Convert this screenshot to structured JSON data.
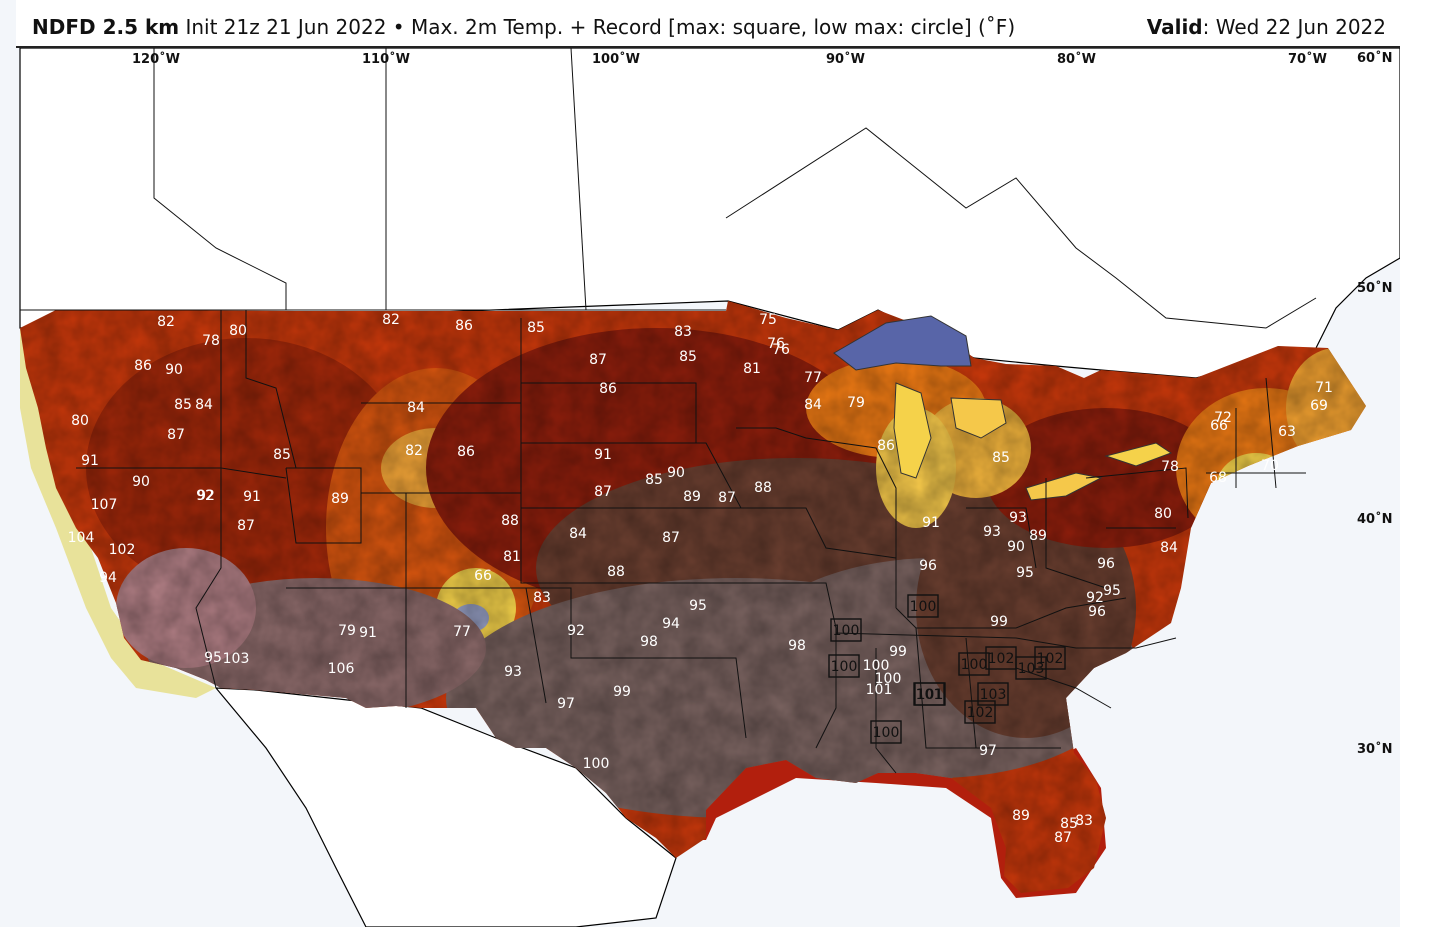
{
  "header": {
    "product": "NDFD 2.5 km",
    "init": "Init 21z 21 Jun 2022",
    "separator": "•",
    "variable": "Max. 2m Temp. + Record [max: square, low max: circle] (˚F)",
    "valid_label": "Valid",
    "valid_value": ": Wed 22 Jun 2022"
  },
  "map": {
    "longitude_labels": [
      "120˚W",
      "110˚W",
      "100˚W",
      "90˚W",
      "80˚W",
      "70˚W"
    ],
    "latitude_labels": [
      "60˚N",
      "50˚N",
      "40˚N",
      "30˚N"
    ],
    "colors": {
      "ocean": "#f3f6fa",
      "hot_gray": "#7a6360",
      "hot_brown": "#6b3f30",
      "dark_red": "#8e1e0c",
      "red_orange": "#c9380b",
      "orange": "#ee7a14",
      "yellow": "#f5d24a",
      "gulf_stream_red": "#b21f0d",
      "lake_superior": "#5865a8",
      "record_box_stroke": "#111111"
    },
    "temperature_labels": [
      {
        "text": "82"
      },
      {
        "text": "78"
      },
      {
        "text": "80"
      },
      {
        "text": "82"
      },
      {
        "text": "86"
      },
      {
        "text": "85"
      },
      {
        "text": "83"
      },
      {
        "text": "85"
      },
      {
        "text": "87"
      },
      {
        "text": "86"
      },
      {
        "text": "81"
      },
      {
        "text": "76"
      },
      {
        "text": "75"
      },
      {
        "text": "77"
      },
      {
        "text": "84"
      },
      {
        "text": "79"
      },
      {
        "text": "80"
      },
      {
        "text": "90"
      },
      {
        "text": "86"
      },
      {
        "text": "85"
      },
      {
        "text": "84"
      },
      {
        "text": "92"
      },
      {
        "text": "87"
      },
      {
        "text": "91"
      },
      {
        "text": "90"
      },
      {
        "text": "107"
      },
      {
        "text": "104"
      },
      {
        "text": "102"
      },
      {
        "text": "94"
      },
      {
        "text": "92"
      },
      {
        "text": "91"
      },
      {
        "text": "87"
      },
      {
        "text": "89"
      },
      {
        "text": "85"
      },
      {
        "text": "82"
      },
      {
        "text": "86"
      },
      {
        "text": "84"
      },
      {
        "text": "88"
      },
      {
        "text": "87"
      },
      {
        "text": "81"
      },
      {
        "text": "66"
      },
      {
        "text": "77"
      },
      {
        "text": "83"
      },
      {
        "text": "84"
      },
      {
        "text": "88"
      },
      {
        "text": "90"
      },
      {
        "text": "87"
      },
      {
        "text": "85"
      },
      {
        "text": "89"
      },
      {
        "text": "91"
      },
      {
        "text": "95"
      },
      {
        "text": "92"
      },
      {
        "text": "94"
      },
      {
        "text": "98"
      },
      {
        "text": "99"
      },
      {
        "text": "97"
      },
      {
        "text": "100"
      },
      {
        "text": "93"
      },
      {
        "text": "106"
      },
      {
        "text": "103"
      },
      {
        "text": "95"
      },
      {
        "text": "79"
      },
      {
        "text": "91"
      },
      {
        "text": "98"
      },
      {
        "text": "99"
      },
      {
        "text": "96"
      },
      {
        "text": "100"
      },
      {
        "text": "101"
      },
      {
        "text": "93"
      },
      {
        "text": "95"
      },
      {
        "text": "96"
      },
      {
        "text": "91"
      },
      {
        "text": "93"
      },
      {
        "text": "90"
      },
      {
        "text": "89"
      },
      {
        "text": "88"
      },
      {
        "text": "87"
      },
      {
        "text": "86"
      },
      {
        "text": "85"
      },
      {
        "text": "84"
      },
      {
        "text": "78"
      },
      {
        "text": "80"
      },
      {
        "text": "71"
      },
      {
        "text": "69"
      },
      {
        "text": "66"
      },
      {
        "text": "72"
      },
      {
        "text": "68"
      },
      {
        "text": "63"
      },
      {
        "text": "70"
      },
      {
        "text": "76"
      },
      {
        "text": "92"
      },
      {
        "text": "95"
      },
      {
        "text": "99"
      },
      {
        "text": "96"
      },
      {
        "text": "89"
      },
      {
        "text": "85"
      },
      {
        "text": "83"
      },
      {
        "text": "87"
      },
      {
        "text": "100"
      },
      {
        "text": "97"
      }
    ],
    "record_boxes": [
      {
        "text": "100"
      },
      {
        "text": "100"
      },
      {
        "text": "100"
      },
      {
        "text": "100"
      },
      {
        "text": "102"
      },
      {
        "text": "102"
      },
      {
        "text": "103"
      },
      {
        "text": "101"
      },
      {
        "text": "103"
      },
      {
        "text": "102"
      },
      {
        "text": "100"
      },
      {
        "text": "101"
      }
    ]
  }
}
